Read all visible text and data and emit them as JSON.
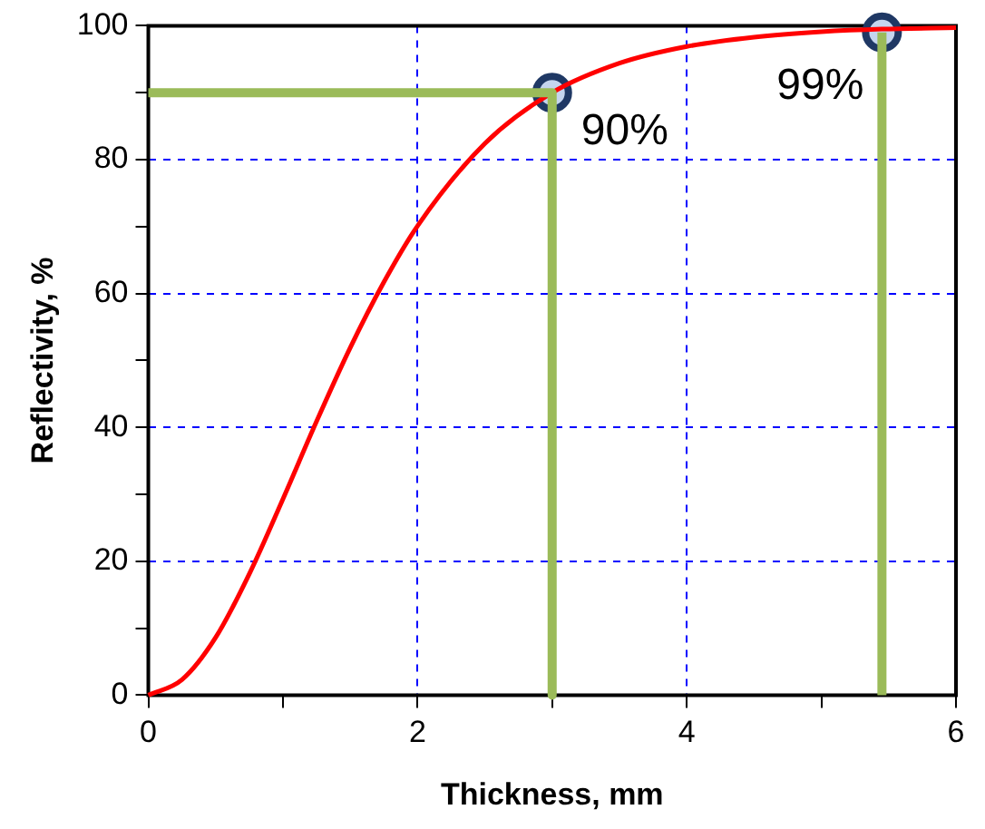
{
  "chart_data": {
    "type": "line",
    "xlabel": "Thickness, mm",
    "ylabel": "Reflectivity, %",
    "xlim": [
      0,
      6
    ],
    "ylim": [
      0,
      100
    ],
    "xticks": [
      0,
      {
        "value": 1,
        "label": null
      },
      2,
      {
        "value": 3,
        "label": null
      },
      4,
      {
        "value": 5,
        "label": null
      },
      6
    ],
    "yticks": [
      0,
      {
        "value": 10,
        "label": null
      },
      20,
      {
        "value": 30,
        "label": null
      },
      40,
      {
        "value": 50,
        "label": null
      },
      60,
      {
        "value": 70,
        "label": null
      },
      80,
      {
        "value": 90,
        "label": null
      },
      100
    ],
    "grid": true,
    "legend": false,
    "series": [
      {
        "color": "#9bbb59",
        "marker": "none",
        "x": [
          0,
          3,
          3
        ],
        "values": [
          90,
          90,
          0
        ]
      },
      {
        "color": "#9bbb59",
        "marker": "none",
        "x": [
          5.45,
          5.45
        ],
        "values": [
          0,
          99
        ]
      },
      {
        "color": "#ff0000",
        "marker": "none",
        "x": [
          0,
          0.25,
          0.5,
          0.75,
          1,
          1.25,
          1.5,
          1.75,
          2,
          2.5,
          3,
          3.5,
          4,
          4.5,
          5,
          5.45,
          6
        ],
        "values": [
          0,
          2.3,
          8.6,
          18.1,
          29.3,
          40.9,
          51.9,
          61.7,
          70.1,
          82.4,
          90,
          94.4,
          96.9,
          98.3,
          99.1,
          99.5,
          99.7
        ]
      },
      {
        "type": "scatter",
        "color": "#c5d5ee",
        "marker": "circle",
        "x": [
          3,
          5.45
        ],
        "values": [
          90,
          99
        ],
        "value_labels": [
          "90%",
          "99%"
        ]
      }
    ]
  }
}
